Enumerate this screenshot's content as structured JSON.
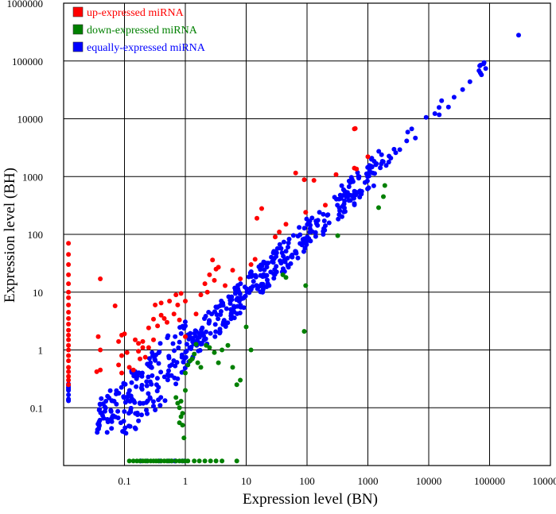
{
  "chart_data": {
    "type": "scatter",
    "title": "",
    "xlabel": "Expression level (BN)",
    "ylabel": "Expression level (BH)",
    "x_scale": "log",
    "y_scale": "log",
    "xlim": [
      0.01,
      1000000
    ],
    "ylim": [
      0.01,
      1000000
    ],
    "x_ticks": [
      "0.1",
      "1",
      "10",
      "100",
      "1000",
      "10000",
      "100000",
      "1000000"
    ],
    "y_ticks": [
      "0.1",
      "1",
      "10",
      "100",
      "1000",
      "10000",
      "100000",
      "1000000"
    ],
    "grid": true,
    "legend_position": "top-left",
    "series": [
      {
        "name": "up-expressed miRNA",
        "color": "#ff0000",
        "points": [
          [
            0.012,
            70
          ],
          [
            0.012,
            45
          ],
          [
            0.012,
            30
          ],
          [
            0.012,
            20
          ],
          [
            0.012,
            14
          ],
          [
            0.012,
            10
          ],
          [
            0.012,
            8
          ],
          [
            0.012,
            6
          ],
          [
            0.012,
            4.5
          ],
          [
            0.012,
            3.5
          ],
          [
            0.012,
            2.8
          ],
          [
            0.012,
            2.2
          ],
          [
            0.012,
            1.8
          ],
          [
            0.012,
            1.5
          ],
          [
            0.012,
            1.2
          ],
          [
            0.012,
            1
          ],
          [
            0.012,
            0.8
          ],
          [
            0.012,
            0.65
          ],
          [
            0.012,
            0.5
          ],
          [
            0.012,
            0.42
          ],
          [
            0.012,
            0.35
          ],
          [
            0.012,
            0.3
          ],
          [
            0.012,
            0.25
          ],
          [
            0.04,
            17
          ],
          [
            0.07,
            5.8
          ],
          [
            0.037,
            1.7
          ],
          [
            0.04,
            1
          ],
          [
            0.035,
            0.42
          ],
          [
            0.04,
            0.45
          ],
          [
            0.09,
            1.8
          ],
          [
            0.1,
            1.9
          ],
          [
            0.08,
            1.4
          ],
          [
            0.09,
            0.8
          ],
          [
            0.11,
            0.9
          ],
          [
            0.08,
            0.55
          ],
          [
            0.12,
            0.5
          ],
          [
            0.09,
            0.4
          ],
          [
            0.14,
            0.45
          ],
          [
            0.15,
            1.5
          ],
          [
            0.17,
            1.3
          ],
          [
            0.2,
            1.4
          ],
          [
            0.17,
            0.95
          ],
          [
            0.2,
            1.1
          ],
          [
            0.18,
            0.7
          ],
          [
            0.22,
            0.75
          ],
          [
            0.25,
            1.1
          ],
          [
            0.25,
            2.4
          ],
          [
            0.3,
            1.5
          ],
          [
            0.3,
            3.4
          ],
          [
            0.32,
            6
          ],
          [
            0.35,
            2.6
          ],
          [
            0.4,
            6.5
          ],
          [
            0.4,
            4
          ],
          [
            0.45,
            3.5
          ],
          [
            0.5,
            3
          ],
          [
            0.55,
            7
          ],
          [
            0.65,
            4.2
          ],
          [
            0.7,
            9
          ],
          [
            0.75,
            6
          ],
          [
            0.8,
            3.3
          ],
          [
            0.85,
            9.5
          ],
          [
            1,
            7
          ],
          [
            1,
            1.7
          ],
          [
            1.5,
            4.2
          ],
          [
            1.8,
            9
          ],
          [
            2.1,
            14
          ],
          [
            2.3,
            10
          ],
          [
            2.5,
            20
          ],
          [
            2.8,
            36
          ],
          [
            3,
            16
          ],
          [
            3.2,
            25
          ],
          [
            3.5,
            27
          ],
          [
            4.5,
            13
          ],
          [
            6,
            24
          ],
          [
            8,
            17
          ],
          [
            12,
            30
          ],
          [
            14,
            37
          ],
          [
            15,
            190
          ],
          [
            18,
            280
          ],
          [
            30,
            90
          ],
          [
            35,
            110
          ],
          [
            45,
            150
          ],
          [
            65,
            1150
          ],
          [
            90,
            880
          ],
          [
            95,
            240
          ],
          [
            130,
            860
          ],
          [
            200,
            320
          ],
          [
            300,
            1080
          ],
          [
            600,
            6700
          ],
          [
            620,
            6800
          ],
          [
            600,
            1400
          ],
          [
            650,
            1350
          ],
          [
            1000,
            2200
          ]
        ]
      },
      {
        "name": "down-expressed miRNA",
        "color": "#008000",
        "points": [
          [
            0.12,
            0.012
          ],
          [
            0.14,
            0.012
          ],
          [
            0.16,
            0.012
          ],
          [
            0.18,
            0.012
          ],
          [
            0.2,
            0.012
          ],
          [
            0.22,
            0.012
          ],
          [
            0.24,
            0.012
          ],
          [
            0.27,
            0.012
          ],
          [
            0.3,
            0.012
          ],
          [
            0.33,
            0.012
          ],
          [
            0.36,
            0.012
          ],
          [
            0.4,
            0.012
          ],
          [
            0.45,
            0.012
          ],
          [
            0.5,
            0.012
          ],
          [
            0.55,
            0.012
          ],
          [
            0.6,
            0.012
          ],
          [
            0.7,
            0.012
          ],
          [
            0.8,
            0.012
          ],
          [
            0.9,
            0.012
          ],
          [
            1,
            0.012
          ],
          [
            1.1,
            0.012
          ],
          [
            1.4,
            0.012
          ],
          [
            1.7,
            0.012
          ],
          [
            2.1,
            0.012
          ],
          [
            2.6,
            0.012
          ],
          [
            3.2,
            0.012
          ],
          [
            4,
            0.012
          ],
          [
            7,
            0.012
          ],
          [
            0.7,
            0.15
          ],
          [
            0.75,
            0.12
          ],
          [
            0.8,
            0.1
          ],
          [
            0.85,
            0.07
          ],
          [
            0.8,
            0.055
          ],
          [
            0.9,
            0.08
          ],
          [
            0.9,
            0.05
          ],
          [
            0.95,
            0.03
          ],
          [
            0.85,
            0.13
          ],
          [
            1,
            0.2
          ],
          [
            1,
            0.4
          ],
          [
            1.1,
            0.55
          ],
          [
            1.2,
            0.65
          ],
          [
            1.3,
            0.7
          ],
          [
            1.4,
            0.85
          ],
          [
            1.5,
            1.25
          ],
          [
            1.6,
            0.6
          ],
          [
            1.8,
            0.5
          ],
          [
            2.2,
            1.2
          ],
          [
            2.5,
            1.1
          ],
          [
            3,
            0.9
          ],
          [
            3.5,
            0.6
          ],
          [
            4,
            1
          ],
          [
            5,
            1.2
          ],
          [
            6,
            0.5
          ],
          [
            7,
            0.25
          ],
          [
            8,
            0.3
          ],
          [
            10,
            2.5
          ],
          [
            12,
            1
          ],
          [
            40,
            20
          ],
          [
            45,
            18
          ],
          [
            90,
            2.1
          ],
          [
            95,
            13
          ],
          [
            320,
            95
          ],
          [
            1500,
            290
          ],
          [
            1800,
            450
          ],
          [
            1900,
            700
          ]
        ]
      },
      {
        "name": "equally-expressed miRNA",
        "color": "#0000ff",
        "points": []
      }
    ]
  }
}
